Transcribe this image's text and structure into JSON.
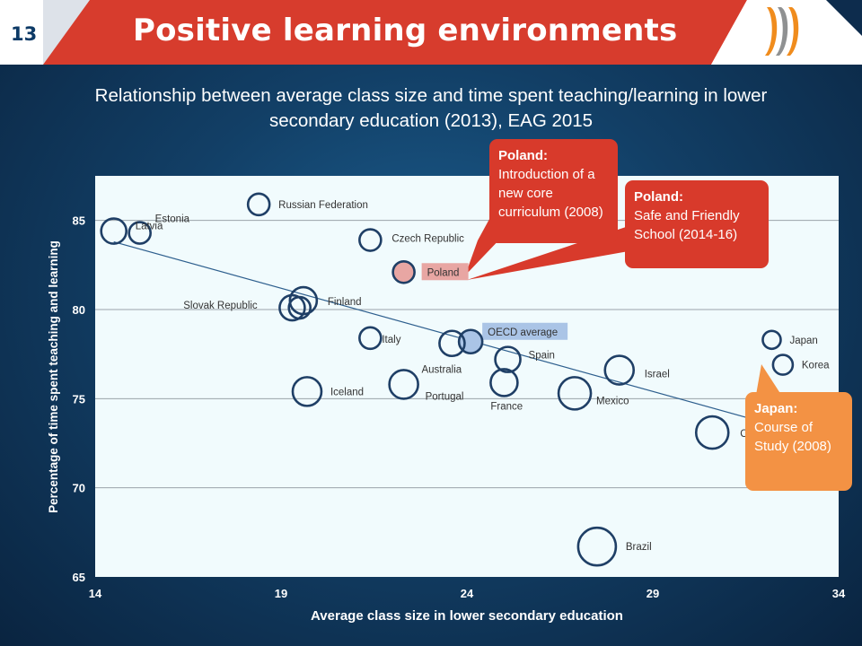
{
  "header": {
    "slide_number": "13",
    "title": "Positive learning environments",
    "logo": "oecd-logo"
  },
  "subtitle": "Relationship between average class size and time spent teaching/learning in lower secondary education (2013), EAG 2015",
  "callouts": [
    {
      "id": "poland-1",
      "heading": "Poland:",
      "body": "Introduction of a new core curriculum (2008)",
      "color": "#d83a2b"
    },
    {
      "id": "poland-2",
      "heading": "Poland:",
      "body": "Safe and Friendly School (2014-16)",
      "color": "#d83a2b"
    },
    {
      "id": "japan",
      "heading": "Japan:",
      "body": "Course of Study (2008)",
      "color": "#f39244"
    }
  ],
  "chart_data": {
    "type": "scatter",
    "xlabel": "Average class size  in lower secondary education",
    "ylabel": "Percentage of time spent teaching and learning",
    "xlim": [
      14,
      34
    ],
    "ylim": [
      65,
      87.5
    ],
    "xticks": [
      14,
      19,
      24,
      29,
      34
    ],
    "yticks": [
      65,
      70,
      75,
      80,
      85
    ],
    "grid": "horizontal",
    "trendline": {
      "x": [
        14.5,
        33.5
      ],
      "y": [
        83.8,
        72.8
      ]
    },
    "points": [
      {
        "label": "Latvia",
        "x": 14.5,
        "y": 84.4
      },
      {
        "label": "Estonia",
        "x": 15.2,
        "y": 84.3
      },
      {
        "label": "Russian Federation",
        "x": 18.4,
        "y": 85.9
      },
      {
        "label": "Czech Republic",
        "x": 21.4,
        "y": 83.9
      },
      {
        "label": "Poland",
        "x": 22.3,
        "y": 82.1,
        "highlight": "#e8a6a3"
      },
      {
        "label": "Finland",
        "x": 19.6,
        "y": 80.5
      },
      {
        "label": "",
        "x": 19.3,
        "y": 80.1
      },
      {
        "label": "Slovak Republic",
        "x": 19.5,
        "y": 80.1
      },
      {
        "label": "Italy",
        "x": 21.4,
        "y": 78.4
      },
      {
        "label": "OECD average",
        "x": 24.1,
        "y": 78.2,
        "highlight": "#aac4e6"
      },
      {
        "label": "Australia",
        "x": 23.6,
        "y": 78.1
      },
      {
        "label": "Spain",
        "x": 25.1,
        "y": 77.2
      },
      {
        "label": "Israel",
        "x": 28.1,
        "y": 76.6
      },
      {
        "label": "France",
        "x": 25.0,
        "y": 75.9
      },
      {
        "label": "Portugal",
        "x": 22.3,
        "y": 75.8
      },
      {
        "label": "Iceland",
        "x": 19.7,
        "y": 75.4
      },
      {
        "label": "Mexico",
        "x": 26.9,
        "y": 75.3
      },
      {
        "label": "Japan",
        "x": 32.2,
        "y": 78.3
      },
      {
        "label": "Korea",
        "x": 32.5,
        "y": 76.9
      },
      {
        "label": "Chile",
        "x": 30.6,
        "y": 73.1
      },
      {
        "label": "Brazil",
        "x": 27.5,
        "y": 66.7
      }
    ]
  }
}
